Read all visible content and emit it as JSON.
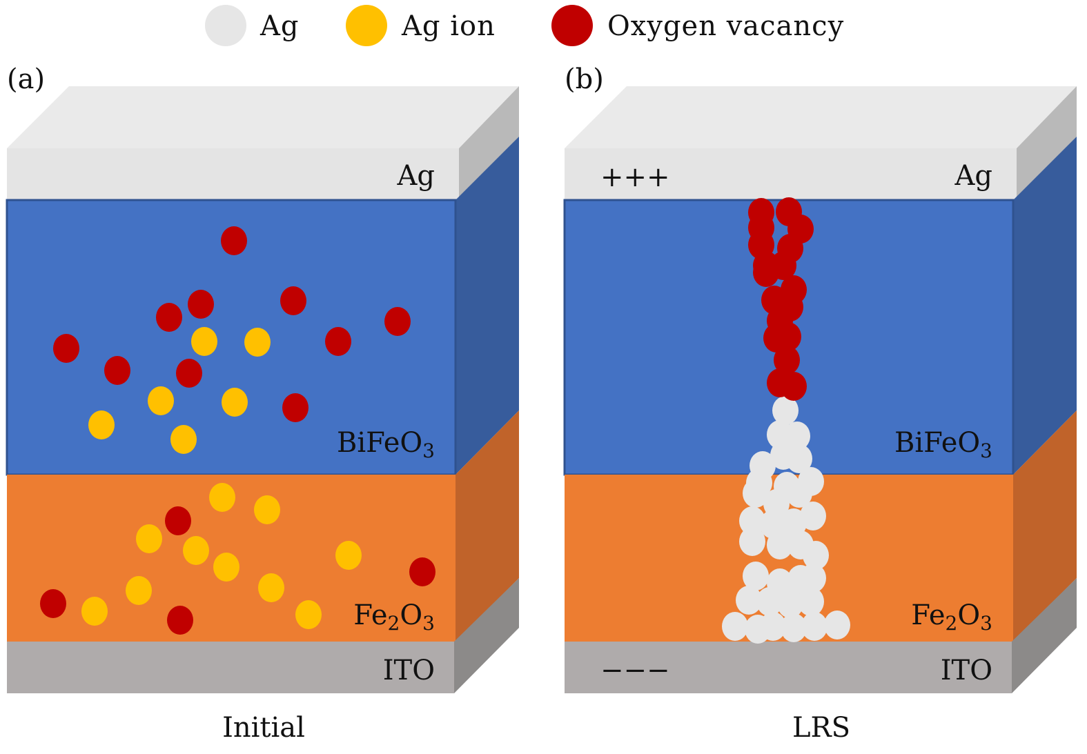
{
  "legend": [
    {
      "label": "Ag",
      "color": "#E6E6E6"
    },
    {
      "label": "Ag ion",
      "color": "#FFC000"
    },
    {
      "label": "Oxygen vacancy",
      "color": "#C00000"
    }
  ],
  "panels": [
    {
      "tag": "(a)",
      "caption": "Initial",
      "layers": {
        "top": "Ag",
        "mid": "BiFeO",
        "mid_sub": "3",
        "low_a": "Fe",
        "low_sub1": "2",
        "low_b": "O",
        "low_sub2": "3",
        "base": "ITO"
      }
    },
    {
      "tag": "(b)",
      "caption": "LRS",
      "top_polarity": "+++",
      "bottom_polarity": "−−−",
      "layers": {
        "top": "Ag",
        "mid": "BiFeO",
        "mid_sub": "3",
        "low_a": "Fe",
        "low_sub1": "2",
        "low_b": "O",
        "low_sub2": "3",
        "base": "ITO"
      }
    }
  ],
  "colors": {
    "ag_front": "#E4E4E4",
    "ag_top": "#EAEAEA",
    "ag_side": "#B9B9B9",
    "bfo_front": "#4472C4",
    "bfo_side": "#375C9C",
    "fe2o3_front": "#ED7D31",
    "fe2o3_side": "#C0632A",
    "ito_front": "#AFABAB",
    "ito_side": "#8C8A89"
  }
}
